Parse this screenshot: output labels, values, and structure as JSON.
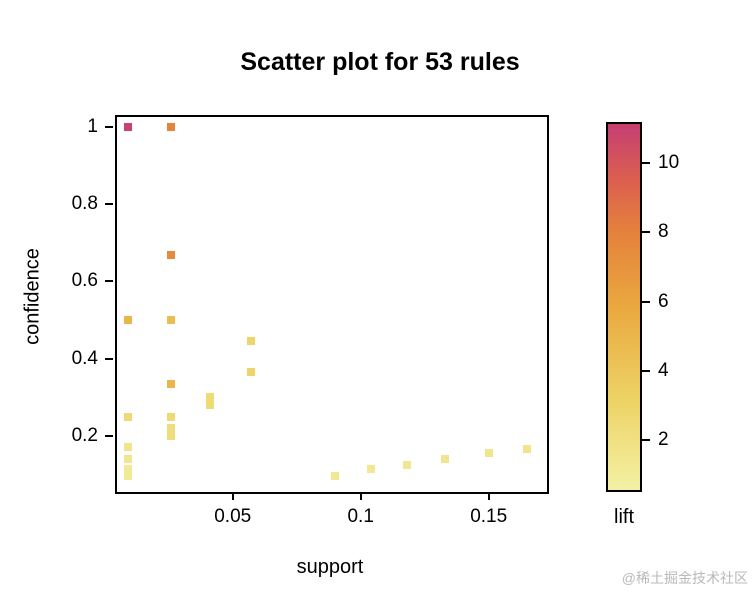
{
  "watermark": "@稀土掘金技术社区",
  "chart_data": {
    "type": "scatter",
    "title": "Scatter plot for 53 rules",
    "xlabel": "support",
    "ylabel": "confidence",
    "legend_label": "lift",
    "rule_count": 53,
    "xlim": [
      0.004,
      0.172
    ],
    "ylim": [
      0.06,
      1.03
    ],
    "liftlim": [
      0.6,
      11.2
    ],
    "grid": false,
    "legend_position": "right",
    "x_ticks": [
      {
        "value": 0.05,
        "label": "0.05"
      },
      {
        "value": 0.1,
        "label": "0.1"
      },
      {
        "value": 0.15,
        "label": "0.15"
      }
    ],
    "y_ticks": [
      {
        "value": 0.2,
        "label": "0.2"
      },
      {
        "value": 0.4,
        "label": "0.4"
      },
      {
        "value": 0.6,
        "label": "0.6"
      },
      {
        "value": 0.8,
        "label": "0.8"
      },
      {
        "value": 1.0,
        "label": "1"
      }
    ],
    "legend_ticks": [
      {
        "value": 2,
        "label": "2"
      },
      {
        "value": 4,
        "label": "4"
      },
      {
        "value": 6,
        "label": "6"
      },
      {
        "value": 8,
        "label": "8"
      },
      {
        "value": 10,
        "label": "10"
      }
    ],
    "color_stops": [
      {
        "t": 0.0,
        "color": "#F3F1A5"
      },
      {
        "t": 0.25,
        "color": "#EDD264"
      },
      {
        "t": 0.5,
        "color": "#E9A83F"
      },
      {
        "t": 0.7,
        "color": "#E5823C"
      },
      {
        "t": 0.85,
        "color": "#DB5E50"
      },
      {
        "t": 1.0,
        "color": "#C53F72"
      }
    ],
    "points": [
      {
        "support": 0.009,
        "confidence": 1.0,
        "lift": 11.0
      },
      {
        "support": 0.026,
        "confidence": 1.0,
        "lift": 8.0
      },
      {
        "support": 0.026,
        "confidence": 0.667,
        "lift": 7.5
      },
      {
        "support": 0.009,
        "confidence": 0.5,
        "lift": 5.0
      },
      {
        "support": 0.026,
        "confidence": 0.5,
        "lift": 4.5
      },
      {
        "support": 0.026,
        "confidence": 0.335,
        "lift": 5.0
      },
      {
        "support": 0.057,
        "confidence": 0.445,
        "lift": 3.0
      },
      {
        "support": 0.057,
        "confidence": 0.365,
        "lift": 3.0
      },
      {
        "support": 0.041,
        "confidence": 0.3,
        "lift": 2.5
      },
      {
        "support": 0.041,
        "confidence": 0.28,
        "lift": 2.5
      },
      {
        "support": 0.009,
        "confidence": 0.25,
        "lift": 2.5
      },
      {
        "support": 0.026,
        "confidence": 0.25,
        "lift": 2.5
      },
      {
        "support": 0.026,
        "confidence": 0.22,
        "lift": 2.2
      },
      {
        "support": 0.026,
        "confidence": 0.2,
        "lift": 2.2
      },
      {
        "support": 0.009,
        "confidence": 0.17,
        "lift": 1.8
      },
      {
        "support": 0.009,
        "confidence": 0.14,
        "lift": 1.5
      },
      {
        "support": 0.009,
        "confidence": 0.115,
        "lift": 1.3
      },
      {
        "support": 0.009,
        "confidence": 0.095,
        "lift": 1.3
      },
      {
        "support": 0.09,
        "confidence": 0.095,
        "lift": 1.4
      },
      {
        "support": 0.104,
        "confidence": 0.115,
        "lift": 1.4
      },
      {
        "support": 0.118,
        "confidence": 0.125,
        "lift": 1.5
      },
      {
        "support": 0.133,
        "confidence": 0.14,
        "lift": 1.5
      },
      {
        "support": 0.15,
        "confidence": 0.155,
        "lift": 1.6
      },
      {
        "support": 0.165,
        "confidence": 0.165,
        "lift": 1.7
      }
    ]
  }
}
